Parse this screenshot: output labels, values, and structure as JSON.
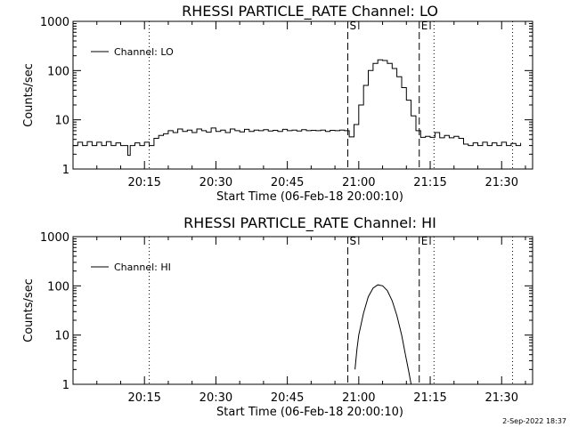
{
  "stamp": "2-Sep-2022 18:37",
  "chart_data": [
    {
      "type": "line",
      "title": "RHESSI PARTICLE_RATE Channel: LO",
      "xlabel": "Start Time (06-Feb-18 20:00:10)",
      "ylabel": "Counts/sec",
      "x_unit": "minutes after 20:00",
      "xlim": [
        0,
        96.5
      ],
      "ylim": [
        1,
        1000
      ],
      "yscale": "log",
      "x_tick_values": [
        15,
        30,
        45,
        60,
        75,
        90
      ],
      "x_tick_labels": [
        "20:15",
        "20:30",
        "20:45",
        "21:00",
        "21:15",
        "21:30"
      ],
      "y_tick_values": [
        1,
        10,
        100,
        1000
      ],
      "y_tick_labels": [
        "1",
        "10",
        "100",
        "1000"
      ],
      "legend": {
        "label": "Channel: LO",
        "position": "top-left"
      },
      "markers": [
        {
          "label": "S",
          "x": 57.7,
          "style": "dashed"
        },
        {
          "label": "E",
          "x": 72.7,
          "style": "dashed"
        },
        {
          "label": "",
          "x": 16.0,
          "style": "dotted"
        },
        {
          "label": "",
          "x": 75.8,
          "style": "dotted"
        },
        {
          "label": "",
          "x": 92.3,
          "style": "dotted"
        }
      ],
      "series": [
        {
          "name": "Channel: LO",
          "points": [
            [
              0,
              3
            ],
            [
              1,
              3.5
            ],
            [
              2,
              3
            ],
            [
              3,
              3.6
            ],
            [
              4,
              3
            ],
            [
              5,
              3.5
            ],
            [
              6,
              3
            ],
            [
              7,
              3.6
            ],
            [
              8,
              3
            ],
            [
              9,
              3.4
            ],
            [
              10,
              3
            ],
            [
              11,
              3
            ],
            [
              11.5,
              1.9
            ],
            [
              12,
              3
            ],
            [
              13,
              3.4
            ],
            [
              14,
              3
            ],
            [
              15,
              3.5
            ],
            [
              16,
              3
            ],
            [
              17,
              4.2
            ],
            [
              18,
              4.8
            ],
            [
              19,
              5.2
            ],
            [
              20,
              6
            ],
            [
              21,
              5.5
            ],
            [
              22,
              6.5
            ],
            [
              23,
              5.8
            ],
            [
              24,
              6.2
            ],
            [
              25,
              5.5
            ],
            [
              26,
              6.5
            ],
            [
              27,
              6
            ],
            [
              28,
              5.6
            ],
            [
              29,
              6.8
            ],
            [
              30,
              5.8
            ],
            [
              31,
              6.2
            ],
            [
              32,
              5.5
            ],
            [
              33,
              6.5
            ],
            [
              34,
              6
            ],
            [
              35,
              5.7
            ],
            [
              36,
              6.4
            ],
            [
              37,
              5.8
            ],
            [
              38,
              6.2
            ],
            [
              39,
              6
            ],
            [
              40,
              6.3
            ],
            [
              41,
              5.9
            ],
            [
              42,
              6.1
            ],
            [
              43,
              5.8
            ],
            [
              44,
              6.4
            ],
            [
              45,
              6
            ],
            [
              46,
              6.2
            ],
            [
              47,
              5.9
            ],
            [
              48,
              6.3
            ],
            [
              49,
              6
            ],
            [
              50,
              6.1
            ],
            [
              51,
              6
            ],
            [
              52,
              6.2
            ],
            [
              53,
              5.8
            ],
            [
              54,
              6.1
            ],
            [
              55,
              6
            ],
            [
              56,
              6.2
            ],
            [
              57,
              6
            ],
            [
              58,
              4.5
            ],
            [
              59,
              8
            ],
            [
              60,
              20
            ],
            [
              61,
              50
            ],
            [
              62,
              100
            ],
            [
              63,
              140
            ],
            [
              64,
              165
            ],
            [
              65,
              160
            ],
            [
              66,
              140
            ],
            [
              67,
              110
            ],
            [
              68,
              75
            ],
            [
              69,
              45
            ],
            [
              70,
              25
            ],
            [
              71,
              12
            ],
            [
              72,
              6
            ],
            [
              73,
              4.4
            ],
            [
              74,
              4.6
            ],
            [
              75,
              4.4
            ],
            [
              76,
              5.5
            ],
            [
              77,
              4.3
            ],
            [
              78,
              4.8
            ],
            [
              79,
              4.3
            ],
            [
              80,
              4.6
            ],
            [
              81,
              4.2
            ],
            [
              82,
              3.2
            ],
            [
              83,
              3
            ],
            [
              84,
              3.4
            ],
            [
              85,
              3
            ],
            [
              86,
              3.5
            ],
            [
              87,
              3
            ],
            [
              88,
              3.4
            ],
            [
              89,
              3
            ],
            [
              90,
              3.5
            ],
            [
              91,
              3
            ],
            [
              92,
              3.3
            ],
            [
              93,
              3
            ],
            [
              94,
              3.4
            ]
          ]
        }
      ]
    },
    {
      "type": "line",
      "title": "RHESSI PARTICLE_RATE Channel: HI",
      "xlabel": "Start Time (06-Feb-18 20:00:10)",
      "ylabel": "Counts/sec",
      "x_unit": "minutes after 20:00",
      "xlim": [
        0,
        96.5
      ],
      "ylim": [
        1,
        1000
      ],
      "yscale": "log",
      "x_tick_values": [
        15,
        30,
        45,
        60,
        75,
        90
      ],
      "x_tick_labels": [
        "20:15",
        "20:30",
        "20:45",
        "21:00",
        "21:15",
        "21:30"
      ],
      "y_tick_values": [
        1,
        10,
        100,
        1000
      ],
      "y_tick_labels": [
        "1",
        "10",
        "100",
        "1000"
      ],
      "legend": {
        "label": "Channel: HI",
        "position": "top-left"
      },
      "markers": [
        {
          "label": "S",
          "x": 57.7,
          "style": "dashed"
        },
        {
          "label": "E",
          "x": 72.7,
          "style": "dashed"
        },
        {
          "label": "",
          "x": 16.0,
          "style": "dotted"
        },
        {
          "label": "",
          "x": 75.8,
          "style": "dotted"
        },
        {
          "label": "",
          "x": 92.3,
          "style": "dotted"
        }
      ],
      "series": [
        {
          "name": "Channel: HI",
          "points": [
            [
              59.2,
              2
            ],
            [
              59.6,
              5
            ],
            [
              60,
              10
            ],
            [
              61,
              28
            ],
            [
              62,
              60
            ],
            [
              63,
              90
            ],
            [
              64,
              105
            ],
            [
              65,
              100
            ],
            [
              66,
              80
            ],
            [
              67,
              50
            ],
            [
              68,
              25
            ],
            [
              69,
              10
            ],
            [
              69.8,
              4
            ],
            [
              70.5,
              1.8
            ],
            [
              71,
              1
            ]
          ]
        }
      ]
    }
  ]
}
